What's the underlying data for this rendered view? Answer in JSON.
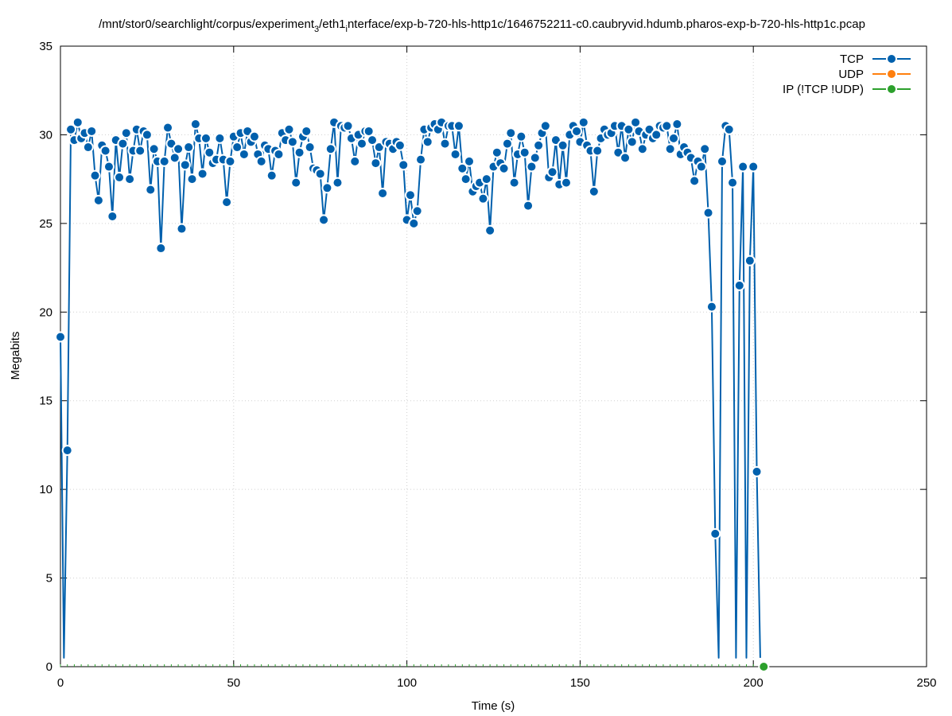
{
  "chart_data": {
    "type": "line",
    "title": "/mnt/stor0/searchlight/corpus/experiment_3/eth1_interface/exp-b-720-hls-http1c/1646752211-c0.caubryvid.hdumb.pharos-exp-b-720-hls-http1c.pcap",
    "title_parts": {
      "a": "/mnt/stor0/searchlight/corpus/experiment",
      "sub1": "3",
      "b": "/eth1",
      "sub2": "i",
      "c": "nterface/exp-b-720-hls-http1c/1646752211-c0.caubryvid.hdumb.pharos-exp-b-720-hls-http1c.pcap"
    },
    "xlabel": "Time (s)",
    "ylabel": "Megabits",
    "xlim": [
      0,
      250
    ],
    "ylim": [
      0,
      35
    ],
    "xticks": [
      0,
      50,
      100,
      150,
      200,
      250
    ],
    "yticks": [
      0,
      5,
      10,
      15,
      20,
      25,
      30,
      35
    ],
    "grid": true,
    "legend_position": "top-right",
    "series": [
      {
        "name": "TCP",
        "color": "#0060ad",
        "points": [
          [
            0,
            18.6
          ],
          [
            1,
            0.5
          ],
          [
            2,
            12.2
          ],
          [
            3,
            30.3
          ],
          [
            4,
            29.7
          ],
          [
            5,
            30.7
          ],
          [
            6,
            29.8
          ],
          [
            7,
            30.1
          ],
          [
            8,
            29.3
          ],
          [
            9,
            30.2
          ],
          [
            10,
            27.7
          ],
          [
            11,
            26.3
          ],
          [
            12,
            29.4
          ],
          [
            13,
            29.1
          ],
          [
            14,
            28.2
          ],
          [
            15,
            25.4
          ],
          [
            16,
            29.7
          ],
          [
            17,
            27.6
          ],
          [
            18,
            29.5
          ],
          [
            19,
            30.1
          ],
          [
            20,
            27.5
          ],
          [
            21,
            29.1
          ],
          [
            22,
            30.3
          ],
          [
            23,
            29.1
          ],
          [
            24,
            30.2
          ],
          [
            25,
            30.0
          ],
          [
            26,
            26.9
          ],
          [
            27,
            29.2
          ],
          [
            28,
            28.5
          ],
          [
            29,
            23.6
          ],
          [
            30,
            28.5
          ],
          [
            31,
            30.4
          ],
          [
            32,
            29.5
          ],
          [
            33,
            28.7
          ],
          [
            34,
            29.2
          ],
          [
            35,
            24.7
          ],
          [
            36,
            28.3
          ],
          [
            37,
            29.3
          ],
          [
            38,
            27.5
          ],
          [
            39,
            30.6
          ],
          [
            40,
            29.8
          ],
          [
            41,
            27.8
          ],
          [
            42,
            29.8
          ],
          [
            43,
            29.0
          ],
          [
            44,
            28.4
          ],
          [
            45,
            28.6
          ],
          [
            46,
            29.8
          ],
          [
            47,
            28.6
          ],
          [
            48,
            26.2
          ],
          [
            49,
            28.5
          ],
          [
            50,
            29.9
          ],
          [
            51,
            29.3
          ],
          [
            52,
            30.1
          ],
          [
            53,
            28.9
          ],
          [
            54,
            30.2
          ],
          [
            55,
            29.6
          ],
          [
            56,
            29.9
          ],
          [
            57,
            28.9
          ],
          [
            58,
            28.5
          ],
          [
            59,
            29.4
          ],
          [
            60,
            29.2
          ],
          [
            61,
            27.7
          ],
          [
            62,
            29.1
          ],
          [
            63,
            28.9
          ],
          [
            64,
            30.1
          ],
          [
            65,
            29.7
          ],
          [
            66,
            30.3
          ],
          [
            67,
            29.6
          ],
          [
            68,
            27.3
          ],
          [
            69,
            29.0
          ],
          [
            70,
            29.9
          ],
          [
            71,
            30.2
          ],
          [
            72,
            29.3
          ],
          [
            73,
            28.1
          ],
          [
            74,
            28.0
          ],
          [
            75,
            27.8
          ],
          [
            76,
            25.2
          ],
          [
            77,
            27.0
          ],
          [
            78,
            29.2
          ],
          [
            79,
            30.7
          ],
          [
            80,
            27.3
          ],
          [
            81,
            30.5
          ],
          [
            82,
            30.4
          ],
          [
            83,
            30.5
          ],
          [
            84,
            29.8
          ],
          [
            85,
            28.5
          ],
          [
            86,
            30.0
          ],
          [
            87,
            29.5
          ],
          [
            88,
            30.2
          ],
          [
            89,
            30.2
          ],
          [
            90,
            29.7
          ],
          [
            91,
            28.4
          ],
          [
            92,
            29.3
          ],
          [
            93,
            26.7
          ],
          [
            94,
            29.6
          ],
          [
            95,
            29.5
          ],
          [
            96,
            29.2
          ],
          [
            97,
            29.6
          ],
          [
            98,
            29.4
          ],
          [
            99,
            28.3
          ],
          [
            100,
            25.2
          ],
          [
            101,
            26.6
          ],
          [
            102,
            25.0
          ],
          [
            103,
            25.7
          ],
          [
            104,
            28.6
          ],
          [
            105,
            30.3
          ],
          [
            106,
            29.6
          ],
          [
            107,
            30.4
          ],
          [
            108,
            30.6
          ],
          [
            109,
            30.3
          ],
          [
            110,
            30.7
          ],
          [
            111,
            29.5
          ],
          [
            112,
            30.5
          ],
          [
            113,
            30.5
          ],
          [
            114,
            28.9
          ],
          [
            115,
            30.5
          ],
          [
            116,
            28.1
          ],
          [
            117,
            27.5
          ],
          [
            118,
            28.5
          ],
          [
            119,
            26.8
          ],
          [
            120,
            27.1
          ],
          [
            121,
            27.3
          ],
          [
            122,
            26.4
          ],
          [
            123,
            27.5
          ],
          [
            124,
            24.6
          ],
          [
            125,
            28.2
          ],
          [
            126,
            29.0
          ],
          [
            127,
            28.4
          ],
          [
            128,
            28.1
          ],
          [
            129,
            29.5
          ],
          [
            130,
            30.1
          ],
          [
            131,
            27.3
          ],
          [
            132,
            28.9
          ],
          [
            133,
            29.9
          ],
          [
            134,
            29.0
          ],
          [
            135,
            26.0
          ],
          [
            136,
            28.2
          ],
          [
            137,
            28.7
          ],
          [
            138,
            29.4
          ],
          [
            139,
            30.1
          ],
          [
            140,
            30.5
          ],
          [
            141,
            27.6
          ],
          [
            142,
            27.9
          ],
          [
            143,
            29.7
          ],
          [
            144,
            27.2
          ],
          [
            145,
            29.4
          ],
          [
            146,
            27.3
          ],
          [
            147,
            30.0
          ],
          [
            148,
            30.5
          ],
          [
            149,
            30.2
          ],
          [
            150,
            29.6
          ],
          [
            151,
            30.7
          ],
          [
            152,
            29.4
          ],
          [
            153,
            29.1
          ],
          [
            154,
            26.8
          ],
          [
            155,
            29.1
          ],
          [
            156,
            29.8
          ],
          [
            157,
            30.3
          ],
          [
            158,
            30.0
          ],
          [
            159,
            30.1
          ],
          [
            160,
            30.5
          ],
          [
            161,
            29.0
          ],
          [
            162,
            30.5
          ],
          [
            163,
            28.7
          ],
          [
            164,
            30.3
          ],
          [
            165,
            29.6
          ],
          [
            166,
            30.7
          ],
          [
            167,
            30.2
          ],
          [
            168,
            29.2
          ],
          [
            169,
            30.0
          ],
          [
            170,
            30.3
          ],
          [
            171,
            29.8
          ],
          [
            172,
            30.0
          ],
          [
            173,
            30.5
          ],
          [
            174,
            30.4
          ],
          [
            175,
            30.5
          ],
          [
            176,
            29.2
          ],
          [
            177,
            29.8
          ],
          [
            178,
            30.6
          ],
          [
            179,
            28.9
          ],
          [
            180,
            29.3
          ],
          [
            181,
            29.0
          ],
          [
            182,
            28.7
          ],
          [
            183,
            27.4
          ],
          [
            184,
            28.5
          ],
          [
            185,
            28.2
          ],
          [
            186,
            29.2
          ],
          [
            187,
            25.6
          ],
          [
            188,
            20.3
          ],
          [
            189,
            7.5
          ],
          [
            190,
            0.5
          ],
          [
            191,
            28.5
          ],
          [
            192,
            30.5
          ],
          [
            193,
            30.3
          ],
          [
            194,
            27.3
          ],
          [
            195,
            0.5
          ],
          [
            196,
            21.5
          ],
          [
            197,
            28.2
          ],
          [
            198,
            0.5
          ],
          [
            199,
            22.9
          ],
          [
            200,
            28.2
          ],
          [
            201,
            11.0
          ],
          [
            202,
            0.5
          ]
        ]
      },
      {
        "name": "UDP",
        "color": "#ff7f0e",
        "points": []
      },
      {
        "name": "IP (!TCP  !UDP)",
        "color": "#2ca02c",
        "points": [
          [
            203,
            0
          ]
        ]
      }
    ]
  }
}
